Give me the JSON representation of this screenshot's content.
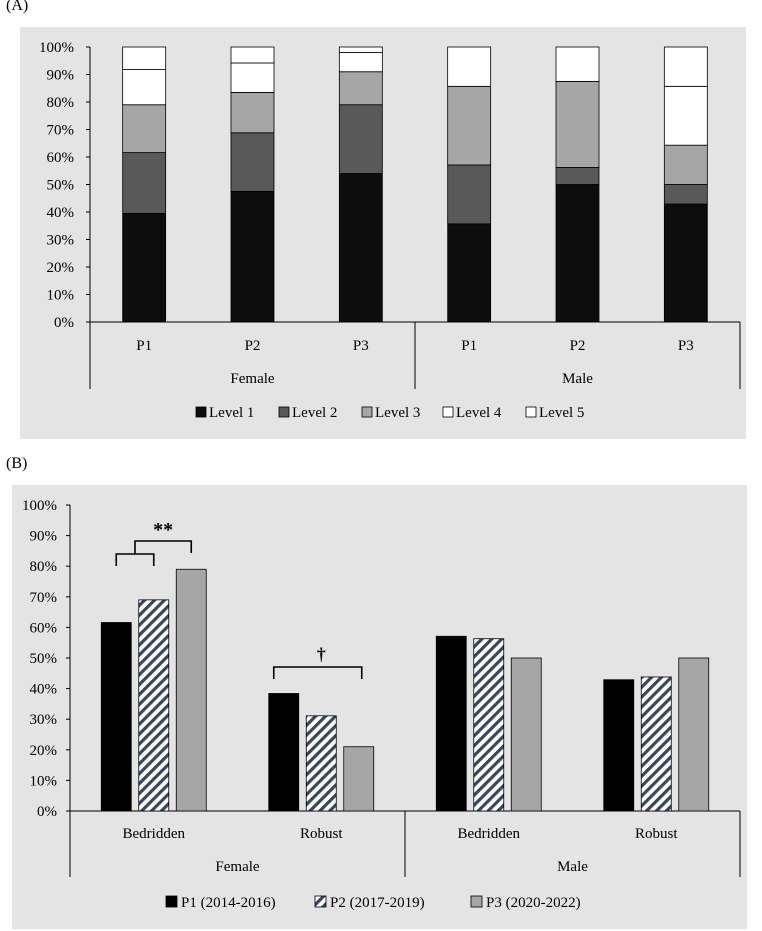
{
  "panel_a_label": "(A)",
  "panel_b_label": "(B)",
  "chart_data": [
    {
      "type": "bar",
      "stacked": true,
      "panel": "(A)",
      "title": "",
      "xlabel": "",
      "ylabel": "",
      "ylim": [
        0,
        100
      ],
      "y_ticks": [
        "0%",
        "10%",
        "20%",
        "30%",
        "40%",
        "50%",
        "60%",
        "70%",
        "80%",
        "90%",
        "100%"
      ],
      "groups": [
        "Female",
        "Male"
      ],
      "categories": [
        "P1",
        "P2",
        "P3",
        "P1",
        "P2",
        "P3"
      ],
      "series": [
        {
          "name": "Level 1",
          "color": "#0d0d0d",
          "values": [
            39.5,
            47.5,
            54.0,
            35.7,
            50.0,
            42.9
          ]
        },
        {
          "name": "Level 2",
          "color": "#595959",
          "values": [
            22.1,
            21.3,
            25.0,
            21.4,
            6.2,
            7.1
          ]
        },
        {
          "name": "Level 3",
          "color": "#a6a6a6",
          "values": [
            17.4,
            14.7,
            12.0,
            28.6,
            31.3,
            14.3
          ]
        },
        {
          "name": "Level 4",
          "color": "#ffffff",
          "values": [
            12.8,
            10.7,
            7.0,
            14.3,
            12.5,
            21.4
          ]
        },
        {
          "name": "Level 5",
          "color": "#ffffff",
          "values": [
            8.2,
            5.8,
            2.0,
            0.0,
            0.0,
            14.3
          ]
        }
      ],
      "legend": [
        "Level 1",
        "Level 2",
        "Level 3",
        "Level 4",
        "Level 5"
      ],
      "legend_position": "bottom"
    },
    {
      "type": "bar",
      "stacked": false,
      "panel": "(B)",
      "title": "",
      "xlabel": "",
      "ylabel": "",
      "ylim": [
        0,
        100
      ],
      "y_ticks": [
        "0%",
        "10%",
        "20%",
        "30%",
        "40%",
        "50%",
        "60%",
        "70%",
        "80%",
        "90%",
        "100%"
      ],
      "groups": [
        "Female",
        "Male"
      ],
      "categories": [
        "Bedridden",
        "Robust",
        "Bedridden",
        "Robust"
      ],
      "series": [
        {
          "name": "P1 (2014-2016)",
          "fill": "solid-black",
          "values": [
            61.6,
            38.4,
            57.1,
            42.9
          ]
        },
        {
          "name": "P2 (2017-2019)",
          "fill": "hatched",
          "values": [
            69.0,
            31.1,
            56.3,
            43.8
          ]
        },
        {
          "name": "P3 (2020-2022)",
          "fill": "gray",
          "values": [
            79.0,
            21.0,
            50.0,
            50.0
          ]
        }
      ],
      "annotations": [
        {
          "text": "**",
          "category": "Bedridden",
          "group": "Female",
          "type": "nested-bracket"
        },
        {
          "text": "†",
          "category": "Robust",
          "group": "Female",
          "type": "bracket"
        }
      ],
      "legend": [
        "P1 (2014-2016)",
        "P2 (2017-2019)",
        "P3 (2020-2022)"
      ],
      "legend_position": "bottom"
    }
  ]
}
